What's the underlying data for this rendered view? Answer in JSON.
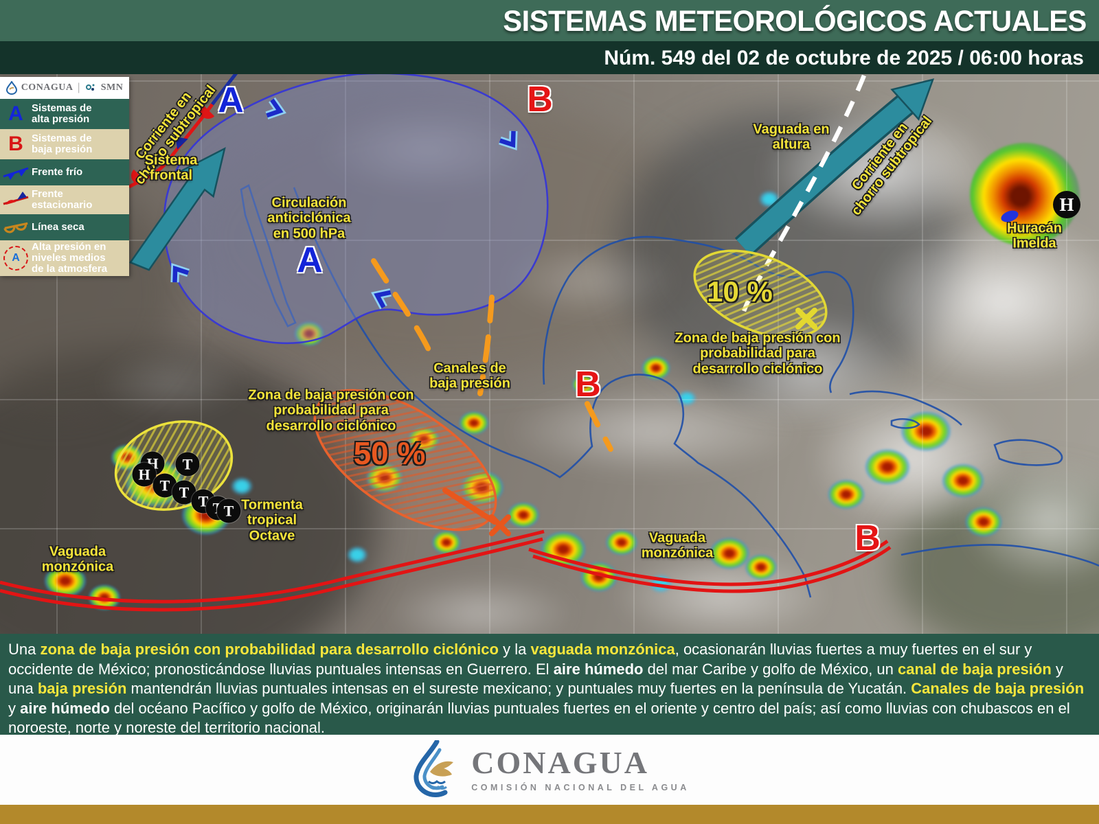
{
  "header": {
    "title": "SISTEMAS METEOROLÓGICOS ACTUALES",
    "subtitle": "Núm. 549 del 02 de octubre de 2025 / 06:00 horas"
  },
  "legend": {
    "conagua": "CONAGUA",
    "smn": "SMN",
    "items": [
      {
        "symbol": "A",
        "label": "Sistemas de\nalta presión"
      },
      {
        "symbol": "B",
        "label": "Sistemas de\nbaja presión"
      },
      {
        "symbol": "cold-front-icon",
        "label": "Frente frío"
      },
      {
        "symbol": "stationary-front-icon",
        "label": "Frente\nestacionario"
      },
      {
        "symbol": "dry-line-icon",
        "label": "Línea seca"
      },
      {
        "symbol": "A",
        "label": "Alta presión en\nniveles medios\nde la atmosfera"
      }
    ]
  },
  "map": {
    "labels": {
      "jet_left": "Corriente en\nchorro subtropical",
      "sistema_frontal": "Sistema\nfrontal",
      "circulacion": "Circulación\nanticiclónica\nen 500 hPa",
      "vaguada_altura": "Vaguada en\naltura",
      "jet_right": "Corriente en\nchorro subtropical",
      "canales": "Canales de\nbaja presión",
      "zona_50": "Zona de baja presión con\nprobabilidad para\ndesarrollo ciclónico",
      "zona_10": "Zona de baja presión con\nprobabilidad para\ndesarrollo ciclónico",
      "octave": "Tormenta\ntropical\nOctave",
      "vaguada_monzonica_left": "Vaguada\nmonzónica",
      "vaguada_monzonica_center": "Vaguada\nmonzónica",
      "imelda": "Huracán\nImelda"
    },
    "zones": {
      "pct50": "50 %",
      "pct10": "10 %"
    },
    "markers": {
      "a1": "A",
      "a2": "A",
      "b1": "B",
      "b2": "B",
      "b3": "B",
      "h_imelda": "H"
    },
    "storm_track": {
      "points": [
        {
          "letter": "H"
        },
        {
          "letter": "T"
        },
        {
          "letter": "H"
        },
        {
          "letter": "T"
        },
        {
          "letter": "T"
        },
        {
          "letter": "T"
        },
        {
          "letter": "T"
        },
        {
          "letter": "T"
        }
      ]
    },
    "colors": {
      "yellow_label": "#f5e43a",
      "orange": "#f59a1d",
      "orange_dark": "#e8571d",
      "red": "#e21414",
      "blue": "#1325d8",
      "teal_jet": "#2c8c9e"
    }
  },
  "summary": {
    "segments": [
      {
        "t": "Una ",
        "s": "p"
      },
      {
        "t": "zona de baja presión con probabilidad para desarrollo ciclónico",
        "s": "y"
      },
      {
        "t": " y la ",
        "s": "p"
      },
      {
        "t": "vaguada monzónica",
        "s": "y"
      },
      {
        "t": ", ocasionarán lluvias fuertes a muy fuertes en el sur y occidente de México; pronosticándose lluvias puntuales intensas en Guerrero. El ",
        "s": "p"
      },
      {
        "t": "aire húmedo",
        "s": "b"
      },
      {
        "t": " del mar Caribe y golfo de México, un ",
        "s": "p"
      },
      {
        "t": "canal de baja presión",
        "s": "y"
      },
      {
        "t": " y una ",
        "s": "p"
      },
      {
        "t": "baja presión",
        "s": "y"
      },
      {
        "t": " mantendrán lluvias puntuales intensas en el sureste mexicano; y puntuales muy fuertes en la península de Yucatán. ",
        "s": "p"
      },
      {
        "t": "Canales de baja presión",
        "s": "y"
      },
      {
        "t": " y ",
        "s": "p"
      },
      {
        "t": "aire húmedo",
        "s": "b"
      },
      {
        "t": " del océano Pacífico y golfo de México, originarán lluvias puntuales fuertes en el oriente y centro del país; así como lluvias con chubascos en el noroeste, norte y noreste del territorio nacional.",
        "s": "p"
      }
    ]
  },
  "footer": {
    "brand": "CONAGUA",
    "tagline": "COMISIÓN NACIONAL DEL AGUA"
  }
}
